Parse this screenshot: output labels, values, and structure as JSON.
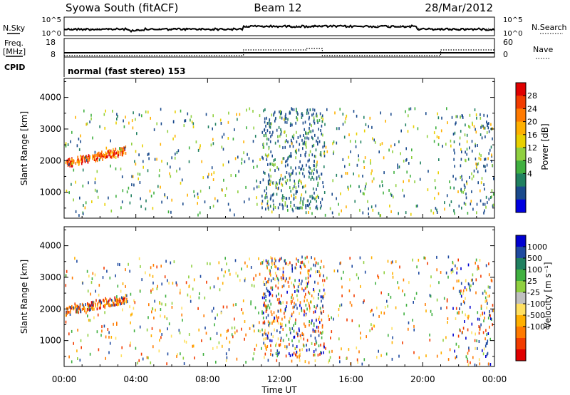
{
  "header": {
    "station": "Syowa South (fitACF)",
    "beam": "Beam 12",
    "date": "28/Mar/2012"
  },
  "noise_panel": {
    "left_label": "N.Sky",
    "right_label": "N.Search",
    "ticks": [
      "10^5",
      "10^0"
    ]
  },
  "freq_panel": {
    "left_label_1": "Freq.",
    "left_label_2": "[MHz]",
    "left_ticks": [
      "18",
      "8"
    ],
    "right_label": "Nave",
    "right_ticks": [
      "60",
      "0"
    ]
  },
  "cpid": {
    "label": "CPID",
    "text": "normal (fast stereo) 153"
  },
  "chart_data": [
    {
      "type": "heatmap",
      "name": "power",
      "ylabel": "Slant Range [km]",
      "xlabel": "",
      "xlim_hours": [
        0,
        24
      ],
      "ylim_km": [
        180,
        4600
      ],
      "yticks": [
        "4000",
        "3000",
        "2000",
        "1000"
      ],
      "ytick_values": [
        4000,
        3000,
        2000,
        1000
      ],
      "colorbar": {
        "label": "Power [dB]",
        "ticks": [
          "28",
          "24",
          "20",
          "16",
          "12",
          "8",
          "4"
        ],
        "colors": [
          "#e00000",
          "#f23c00",
          "#ff7a00",
          "#ffb000",
          "#e8d000",
          "#90d040",
          "#40b040",
          "#208060",
          "#1a4a8c",
          "#0000e0"
        ]
      }
    },
    {
      "type": "heatmap",
      "name": "velocity",
      "ylabel": "Slant Range [km]",
      "xlabel": "Time UT",
      "xticks": [
        "00:00",
        "04:00",
        "08:00",
        "12:00",
        "16:00",
        "20:00",
        "00:00"
      ],
      "xtick_hours": [
        0,
        4,
        8,
        12,
        16,
        20,
        24
      ],
      "xlim_hours": [
        0,
        24
      ],
      "ylim_km": [
        180,
        4600
      ],
      "yticks": [
        "4000",
        "3000",
        "2000",
        "1000"
      ],
      "ytick_values": [
        4000,
        3000,
        2000,
        1000
      ],
      "colorbar": {
        "label": "Velocity [m s⁻¹]",
        "ticks": [
          "1000",
          "500",
          "100",
          "25",
          "-25",
          "-100",
          "-500",
          "-1000"
        ],
        "colors": [
          "#0000d0",
          "#1f4aa0",
          "#208060",
          "#40b040",
          "#90d040",
          "#c0c0c0",
          "#ffe060",
          "#ffb000",
          "#ff7a00",
          "#f23c00",
          "#e00000"
        ]
      }
    }
  ]
}
